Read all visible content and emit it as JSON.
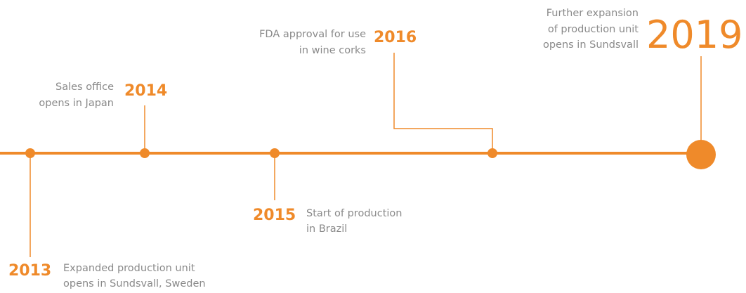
{
  "events": [
    {
      "year": "2013",
      "lines": [
        "Expanded production unit",
        "opens in Sundsvall, Sweden"
      ]
    },
    {
      "year": "2014",
      "lines": [
        "Sales office",
        "opens in Japan"
      ]
    },
    {
      "year": "2015",
      "lines": [
        "Start of production",
        "in Brazil"
      ]
    },
    {
      "year": "2016",
      "lines": [
        "FDA approval for use",
        "in wine corks"
      ]
    },
    {
      "year": "2019",
      "lines": [
        "Further expansion",
        "of production unit",
        "opens in Sundsvall"
      ]
    }
  ]
}
